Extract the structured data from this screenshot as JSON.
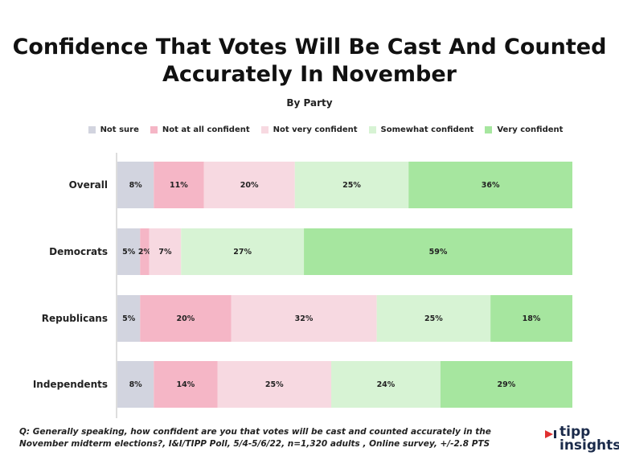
{
  "title_line1": "Confidence That Votes Will Be Cast And Counted",
  "title_line2": "Accurately In November",
  "subtitle": "By Party",
  "footnote_line1": "Q: Generally speaking, how confident are you that votes will be cast and counted accurately in the",
  "footnote_line2": "November midterm elections?, I&I/TIPP Poll, 5/4-5/6/22, n=1,320 adults , Online survey, +/-2.8 PTS",
  "logo": {
    "line1": "tipp",
    "line2": "insights",
    "mark": "▸"
  },
  "colors": {
    "not_sure": "#d2d4df",
    "not_at_all": "#f5b6c6",
    "not_very": "#f7d9e1",
    "somewhat": "#d7f3d4",
    "very": "#a6e69f",
    "logo_red": "#e03030",
    "logo_navy": "#1a2a4a"
  },
  "chart_data": {
    "type": "bar",
    "orientation": "horizontal",
    "stacked": true,
    "categories": [
      "Overall",
      "Democrats",
      "Republicans",
      "Independents"
    ],
    "series": [
      {
        "name": "Not sure",
        "key": "not_sure",
        "values": [
          8,
          5,
          5,
          8
        ]
      },
      {
        "name": "Not at all confident",
        "key": "not_at_all",
        "values": [
          11,
          2,
          20,
          14
        ]
      },
      {
        "name": "Not very confident",
        "key": "not_very",
        "values": [
          20,
          7,
          32,
          25
        ]
      },
      {
        "name": "Somewhat confident",
        "key": "somewhat",
        "values": [
          25,
          27,
          25,
          24
        ]
      },
      {
        "name": "Very confident",
        "key": "very",
        "values": [
          36,
          59,
          18,
          29
        ]
      }
    ],
    "value_suffix": "%",
    "legend_position": "top",
    "xlim": [
      0,
      100
    ]
  }
}
